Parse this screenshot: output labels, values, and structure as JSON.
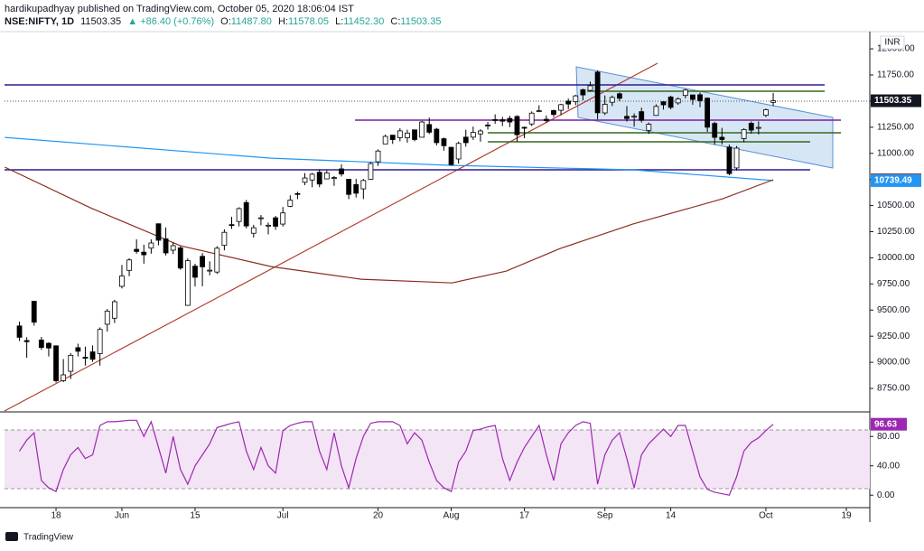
{
  "header": {
    "author_line": "hardikupadhyay published on TradingView.com, October 05, 2020 18:06:04 IST",
    "symbol": "NSE:NIFTY, 1D",
    "last": "11503.35",
    "change": "▲ +86.40 (+0.76%)",
    "open_label": "O:",
    "open": "11487.80",
    "high_label": "H:",
    "high": "11578.05",
    "low_label": "L:",
    "low": "11452.30",
    "close_label": "C:",
    "close": "11503.35"
  },
  "footer": {
    "logo": "TradingView"
  },
  "chart_data": [
    {
      "type": "candlestick",
      "y_unit": "INR",
      "xlim": [
        -2.04,
        116.2
      ],
      "ylim": [
        8534,
        12165
      ],
      "xticks": [
        {
          "value": 5,
          "label": "18"
        },
        {
          "value": 14,
          "label": "Jun"
        },
        {
          "value": 24,
          "label": "15"
        },
        {
          "value": 36,
          "label": "Jul"
        },
        {
          "value": 49,
          "label": "20"
        },
        {
          "value": 59,
          "label": "Aug"
        },
        {
          "value": 69,
          "label": "17"
        },
        {
          "value": 80,
          "label": "Sep"
        },
        {
          "value": 89,
          "label": "14"
        },
        {
          "value": 102,
          "label": "Oct"
        },
        {
          "value": 113,
          "label": "19"
        }
      ],
      "yticks": [
        {
          "value": 8750,
          "label": "8750.00"
        },
        {
          "value": 9000,
          "label": "9000.00"
        },
        {
          "value": 9250,
          "label": "9250.00"
        },
        {
          "value": 9500,
          "label": "9500.00"
        },
        {
          "value": 9750,
          "label": "9750.00"
        },
        {
          "value": 10000,
          "label": "10000.00"
        },
        {
          "value": 10250,
          "label": "10250.00"
        },
        {
          "value": 10500,
          "label": "10500.00"
        },
        {
          "value": 10750,
          "label": "10750.00"
        },
        {
          "value": 11000,
          "label": "11000.00"
        },
        {
          "value": 11250,
          "label": "11250.00"
        },
        {
          "value": 11500,
          "label": "11500.00"
        },
        {
          "value": 11750,
          "label": "11750.00"
        },
        {
          "value": 12000,
          "label": "12000.00"
        }
      ],
      "grid": false,
      "up_color": "#ffffff",
      "down_color": "#000000",
      "border_color": "#000000",
      "open": [
        9348,
        9208,
        9584,
        9213,
        9182,
        9158,
        8824,
        8914,
        9140,
        9049,
        9100,
        9083,
        9364,
        9422,
        9727,
        9880,
        10081,
        10054,
        10093,
        10326,
        10182,
        10073,
        10095,
        9545,
        9920,
        10014,
        9876,
        9864,
        10119,
        10318,
        10348,
        10529,
        10235,
        10378,
        10311,
        10383,
        10323,
        10493,
        10615,
        10723,
        10745,
        10819,
        10755,
        10764,
        10851,
        10752,
        10701,
        10660,
        10752,
        10919,
        11090,
        11174,
        11150,
        11149,
        11225,
        11154,
        11276,
        11231,
        11140,
        11058,
        10946,
        11155,
        11155,
        11186,
        11271,
        11323,
        11322,
        11334,
        11353,
        11249,
        11281,
        11401,
        11326,
        11409,
        11412,
        11500,
        11494,
        11609,
        11603,
        11777,
        11387,
        11489,
        11570,
        11354,
        11350,
        11399,
        11220,
        11363,
        11494,
        11539,
        11483,
        11554,
        11559,
        11561,
        11528,
        11286,
        11154,
        11060,
        10860,
        11141,
        11288,
        11244,
        11364,
        11487.8
      ],
      "high": [
        9390,
        9240,
        9584,
        9243,
        9192,
        9158,
        9031,
        9088,
        9178,
        9150,
        9161,
        9334,
        9511,
        9598,
        9932,
        9996,
        10177,
        10126,
        10177,
        10329,
        10291,
        10148,
        10112,
        9996,
        9943,
        10046,
        9966,
        10111,
        10272,
        10393,
        10484,
        10554,
        10316,
        10409,
        10337,
        10401,
        10486,
        10598,
        10632,
        10811,
        10813,
        10847,
        10836,
        10782,
        10894,
        10755,
        10755,
        10755,
        10918,
        11038,
        11180,
        11175,
        11240,
        11226,
        11225,
        11310,
        11342,
        11244,
        11150,
        11058,
        11113,
        11226,
        11256,
        11232,
        11300,
        11373,
        11349,
        11359,
        11364,
        11256,
        11401,
        11460,
        11362,
        11419,
        11474,
        11524,
        11561,
        11618,
        11686,
        11794,
        11554,
        11553,
        11584,
        11452,
        11382,
        11437,
        11294,
        11469,
        11494,
        11552,
        11536,
        11618,
        11562,
        11584,
        11535,
        11302,
        11244,
        11084,
        11070,
        11240,
        11305,
        11306,
        11428,
        11578.05
      ],
      "low": [
        9204,
        9043,
        9351,
        9119,
        9056,
        8807,
        8810,
        8840,
        9056,
        8969,
        9004,
        8968,
        9294,
        9376,
        9707,
        9824,
        10040,
        9944,
        10040,
        10120,
        10022,
        10036,
        9885,
        9544,
        9726,
        9728,
        9833,
        9846,
        10072,
        10277,
        10301,
        10281,
        10194,
        10311,
        10224,
        10268,
        10299,
        10485,
        10562,
        10695,
        10675,
        10676,
        10754,
        10689,
        10778,
        10562,
        10577,
        10562,
        10749,
        10880,
        11090,
        11090,
        11115,
        11102,
        11115,
        11153,
        11185,
        11076,
        11026,
        10882,
        10902,
        11064,
        11128,
        11112,
        11227,
        11282,
        11261,
        11251,
        11112,
        11144,
        11261,
        11394,
        11291,
        11346,
        11366,
        11424,
        11462,
        11508,
        11589,
        11326,
        11367,
        11452,
        11500,
        11304,
        11255,
        11295,
        11185,
        11363,
        11419,
        11421,
        11464,
        11526,
        11465,
        11442,
        11206,
        11082,
        11084,
        10790,
        10836,
        11107,
        11188,
        11181,
        11347,
        11452.3
      ],
      "close": [
        9239,
        9197,
        9384,
        9142,
        9137,
        8824,
        8880,
        9067,
        9106,
        9039,
        9029,
        9315,
        9490,
        9580,
        9826,
        9980,
        10061,
        10029,
        10142,
        10168,
        10047,
        10116,
        9902,
        9973,
        9814,
        9914,
        9882,
        10092,
        10244,
        10312,
        10471,
        10305,
        10288,
        10383,
        10312,
        10302,
        10430,
        10552,
        10607,
        10764,
        10800,
        10706,
        10813,
        10768,
        10802,
        10607,
        10618,
        10740,
        10902,
        11022,
        11162,
        11132,
        11215,
        11194,
        11132,
        11300,
        11202,
        11102,
        11073,
        10892,
        11095,
        11102,
        11200,
        11214,
        11270,
        11322,
        11308,
        11300,
        11178,
        11247,
        11385,
        11408,
        11312,
        11372,
        11466,
        11472,
        11550,
        11559,
        11647,
        11388,
        11470,
        11535,
        11527,
        11333,
        11355,
        11317,
        11278,
        11449,
        11464,
        11440,
        11521,
        11605,
        11516,
        11505,
        11250,
        11153,
        11132,
        10806,
        11050,
        11228,
        11222,
        11248,
        11417,
        11503.35
      ],
      "overlays": [
        {
          "color": "#2196f3",
          "x": [
            -2.0,
            34.4,
            59.1,
            83.8,
            103
          ],
          "values": [
            11153,
            10954,
            10885,
            10842,
            10739.49
          ]
        },
        {
          "color": "#8b2e1f",
          "x": [
            -2.0,
            9.7,
            22.0,
            34.4,
            46.7,
            59.1,
            66.5,
            73.9,
            83.8,
            96.1,
            103
          ],
          "values": [
            10868,
            10478,
            10115,
            9916,
            9795,
            9760,
            9872,
            10089,
            10323,
            10565,
            10746.92
          ]
        }
      ],
      "price_labels": [
        {
          "value": 11503.35,
          "color": "#131722"
        },
        {
          "value": 10746.92,
          "color": "#8b2e1f"
        },
        {
          "value": 10739.49,
          "color": "#2196f3"
        }
      ]
    },
    {
      "type": "line",
      "xlim": [
        -2.04,
        116.2
      ],
      "ylim": [
        -17,
        111
      ],
      "yticks": [
        {
          "value": 0,
          "label": "0.00"
        },
        {
          "value": 40,
          "label": "40.00"
        },
        {
          "value": 80,
          "label": "80.00"
        }
      ],
      "color": "#9c27b0",
      "values": [
        60,
        75,
        85,
        20,
        10,
        5,
        35,
        55,
        65,
        50,
        55,
        95,
        100,
        100,
        101,
        102,
        102,
        80,
        100,
        65,
        30,
        80,
        35,
        15,
        40,
        55,
        70,
        92,
        95,
        98,
        100,
        60,
        35,
        65,
        40,
        30,
        88,
        95,
        98,
        100,
        100,
        60,
        35,
        85,
        40,
        10,
        50,
        80,
        98,
        100,
        100,
        100,
        95,
        70,
        85,
        75,
        45,
        20,
        10,
        5,
        45,
        60,
        88,
        90,
        93,
        95,
        50,
        20,
        45,
        65,
        80,
        95,
        55,
        20,
        70,
        85,
        95,
        100,
        98,
        15,
        55,
        75,
        85,
        50,
        10,
        55,
        70,
        80,
        90,
        80,
        95,
        95,
        60,
        25,
        8,
        4,
        2,
        0,
        25,
        60,
        72,
        78,
        88,
        96.63
      ],
      "price_labels": [
        {
          "value": 96.63,
          "color": "#9c27b0"
        }
      ]
    }
  ]
}
